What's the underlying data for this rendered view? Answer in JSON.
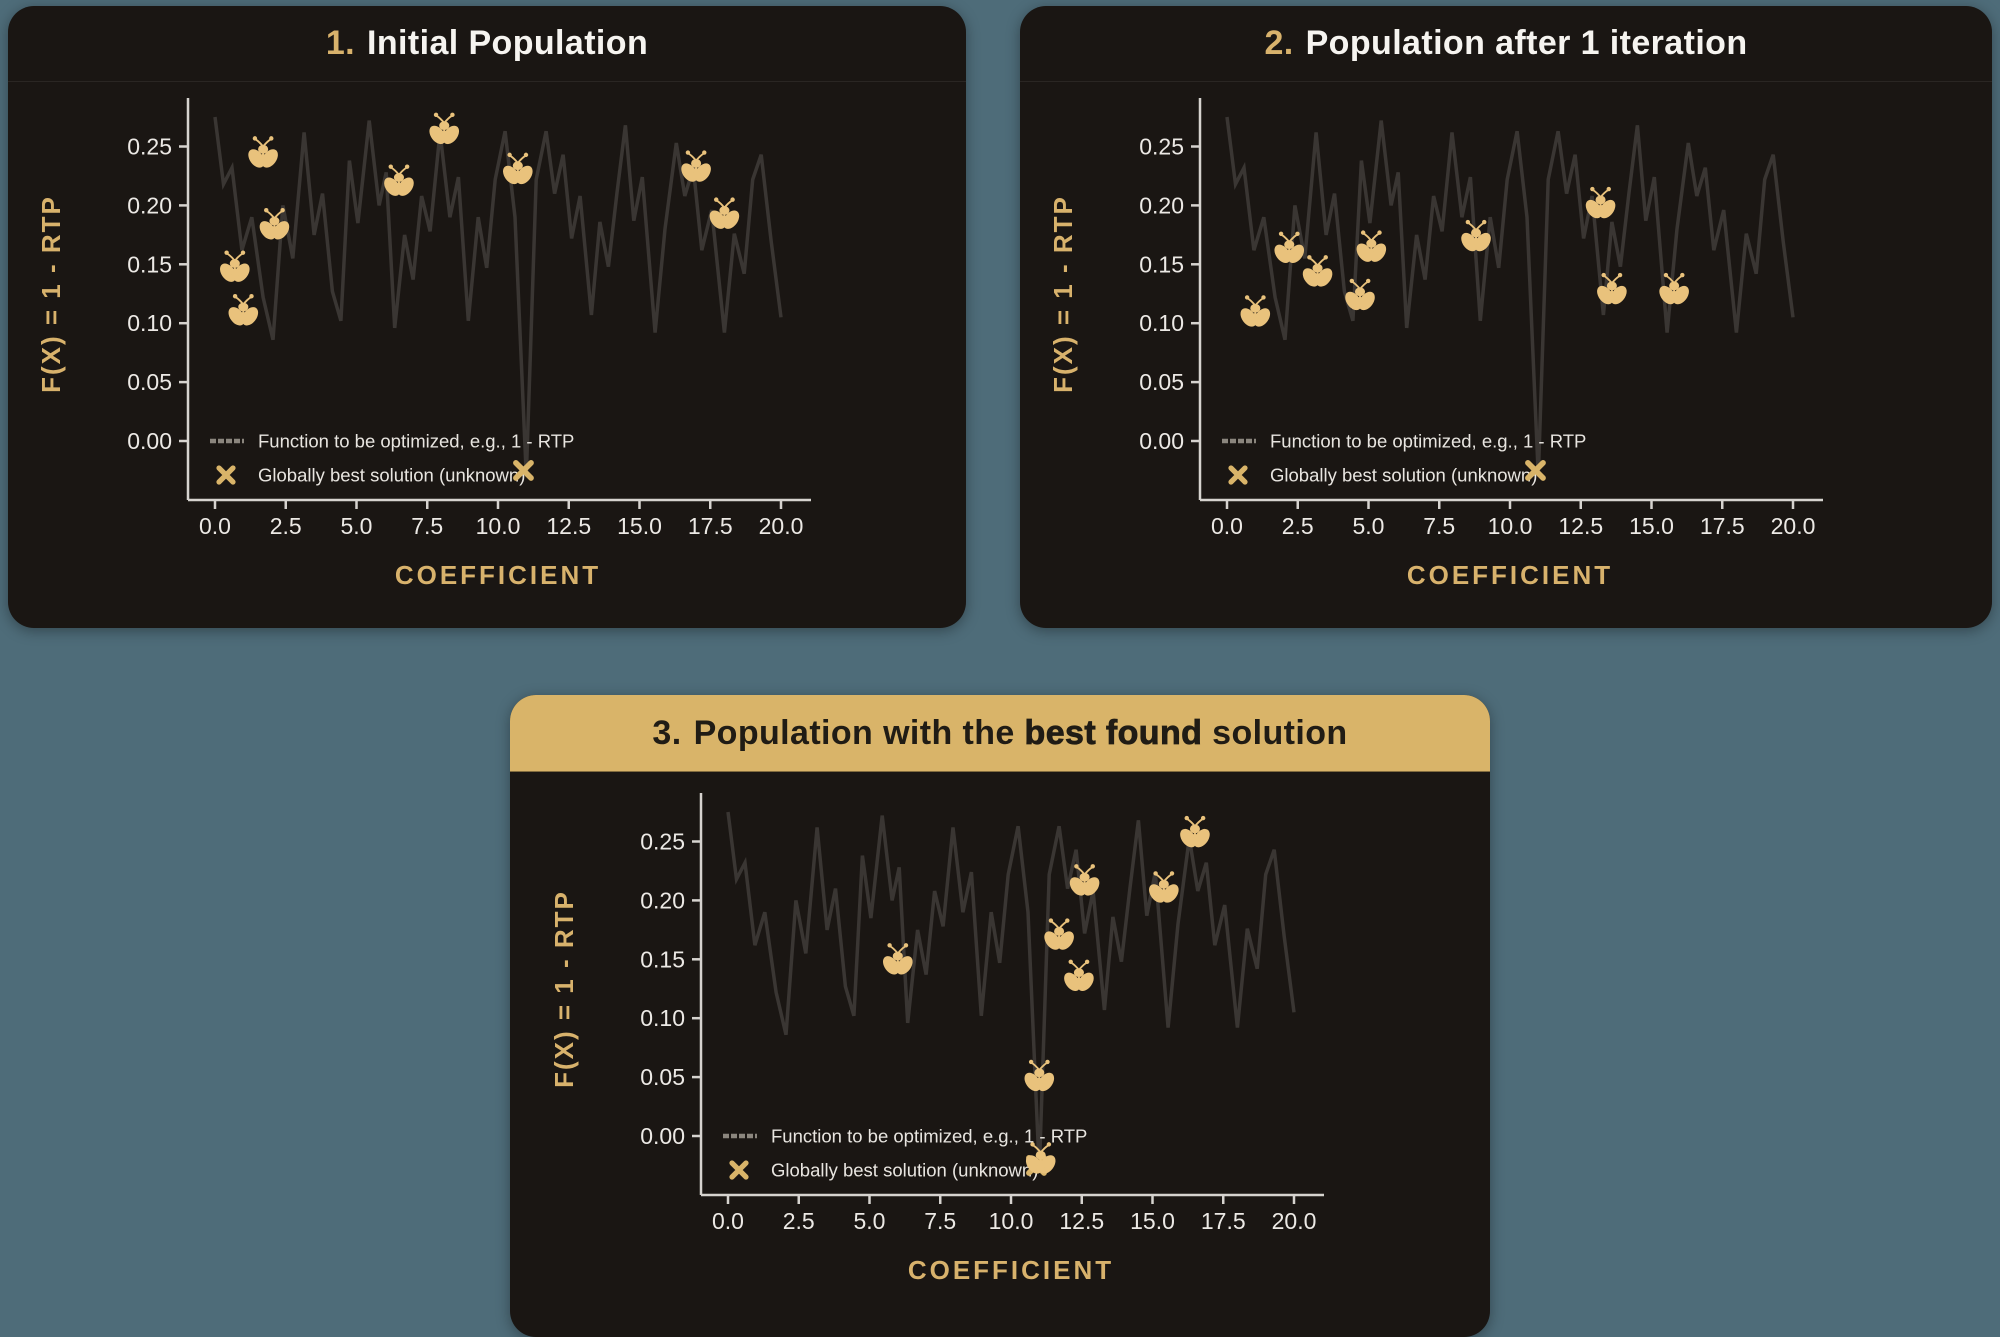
{
  "colors": {
    "background": "#4e6c79",
    "card": "#1a1613",
    "gold_accent": "#d8b26c",
    "firefly_gold": "#e9c27c",
    "header_gold": "#d9b469",
    "header_text": "#201c15",
    "title_text": "#f6f4f0",
    "tick_text": "#ece9e5",
    "legend_text": "#e8e5e0",
    "function_line": "#3a3633",
    "axis_spine": "#d6d3cf",
    "x_marker": "#d9b469"
  },
  "panels": [
    {
      "number": "1.",
      "title_pre": "Initial Population",
      "title_bold": "",
      "title_post": ""
    },
    {
      "number": "2.",
      "title_pre": "Population after 1 iteration",
      "title_bold": "",
      "title_post": ""
    },
    {
      "number": "3.",
      "title_pre": "Population with the ",
      "title_bold": "best found",
      "title_post": " solution"
    }
  ],
  "chart_data": {
    "type": "line",
    "xlabel": "COEFFICIENT",
    "ylabel": "F(X) = 1 - RTP",
    "xlim": [
      -1,
      21.2
    ],
    "ylim": [
      -0.055,
      0.292
    ],
    "grid": false,
    "legend_position": "lower-left-inside",
    "xticks": [
      {
        "value": 0,
        "label": "0.0"
      },
      {
        "value": 2.5,
        "label": "2.5"
      },
      {
        "value": 5,
        "label": "5.0"
      },
      {
        "value": 7.5,
        "label": "7.5"
      },
      {
        "value": 10,
        "label": "10.0"
      },
      {
        "value": 12.5,
        "label": "12.5"
      },
      {
        "value": 15,
        "label": "15.0"
      },
      {
        "value": 17.5,
        "label": "17.5"
      },
      {
        "value": 20,
        "label": "20.0"
      }
    ],
    "yticks": [
      {
        "value": 0.0,
        "label": "0.00"
      },
      {
        "value": 0.05,
        "label": "0.05"
      },
      {
        "value": 0.1,
        "label": "0.10"
      },
      {
        "value": 0.15,
        "label": "0.15"
      },
      {
        "value": 0.2,
        "label": "0.20"
      },
      {
        "value": 0.25,
        "label": "0.25"
      }
    ],
    "legend": [
      {
        "marker": "line",
        "label": "Function to be optimized, e.g., 1 - RTP"
      },
      {
        "marker": "x",
        "label": "Globally best solution (unknown)"
      }
    ],
    "global_best_marker": {
      "x": 10.9,
      "y": -0.025
    },
    "function_curve": [
      [
        0.0,
        0.275
      ],
      [
        0.3,
        0.218
      ],
      [
        0.6,
        0.232
      ],
      [
        0.95,
        0.162
      ],
      [
        1.3,
        0.19
      ],
      [
        1.7,
        0.122
      ],
      [
        2.05,
        0.086
      ],
      [
        2.4,
        0.2
      ],
      [
        2.75,
        0.155
      ],
      [
        3.15,
        0.262
      ],
      [
        3.5,
        0.175
      ],
      [
        3.8,
        0.21
      ],
      [
        4.15,
        0.127
      ],
      [
        4.45,
        0.102
      ],
      [
        4.75,
        0.238
      ],
      [
        5.05,
        0.185
      ],
      [
        5.45,
        0.272
      ],
      [
        5.8,
        0.2
      ],
      [
        6.05,
        0.228
      ],
      [
        6.35,
        0.096
      ],
      [
        6.7,
        0.175
      ],
      [
        7.0,
        0.137
      ],
      [
        7.3,
        0.208
      ],
      [
        7.6,
        0.178
      ],
      [
        7.95,
        0.262
      ],
      [
        8.3,
        0.19
      ],
      [
        8.6,
        0.224
      ],
      [
        8.95,
        0.102
      ],
      [
        9.3,
        0.19
      ],
      [
        9.6,
        0.147
      ],
      [
        9.9,
        0.222
      ],
      [
        10.25,
        0.263
      ],
      [
        10.6,
        0.19
      ],
      [
        11.0,
        -0.03
      ],
      [
        11.35,
        0.222
      ],
      [
        11.7,
        0.263
      ],
      [
        12.0,
        0.21
      ],
      [
        12.3,
        0.243
      ],
      [
        12.6,
        0.172
      ],
      [
        12.9,
        0.208
      ],
      [
        13.3,
        0.107
      ],
      [
        13.6,
        0.186
      ],
      [
        13.9,
        0.148
      ],
      [
        14.2,
        0.21
      ],
      [
        14.5,
        0.268
      ],
      [
        14.8,
        0.187
      ],
      [
        15.1,
        0.224
      ],
      [
        15.55,
        0.092
      ],
      [
        15.9,
        0.18
      ],
      [
        16.3,
        0.253
      ],
      [
        16.6,
        0.208
      ],
      [
        16.9,
        0.232
      ],
      [
        17.2,
        0.162
      ],
      [
        17.55,
        0.196
      ],
      [
        18.0,
        0.092
      ],
      [
        18.35,
        0.176
      ],
      [
        18.7,
        0.142
      ],
      [
        19.0,
        0.222
      ],
      [
        19.3,
        0.243
      ],
      [
        19.65,
        0.17
      ],
      [
        20.0,
        0.105
      ]
    ],
    "panels": [
      {
        "name": "Initial Population",
        "fireflies": [
          [
            0.7,
            0.145
          ],
          [
            1.0,
            0.108
          ],
          [
            1.7,
            0.242
          ],
          [
            2.1,
            0.181
          ],
          [
            6.5,
            0.218
          ],
          [
            8.1,
            0.262
          ],
          [
            10.7,
            0.228
          ],
          [
            17.0,
            0.23
          ],
          [
            18.0,
            0.19
          ]
        ]
      },
      {
        "name": "Population after 1 iteration",
        "fireflies": [
          [
            1.0,
            0.107
          ],
          [
            2.2,
            0.161
          ],
          [
            3.2,
            0.141
          ],
          [
            4.7,
            0.121
          ],
          [
            5.1,
            0.162
          ],
          [
            8.8,
            0.171
          ],
          [
            13.2,
            0.199
          ],
          [
            13.6,
            0.126
          ],
          [
            15.8,
            0.126
          ]
        ]
      },
      {
        "name": "Population with the best found solution",
        "fireflies": [
          [
            6.0,
            0.147
          ],
          [
            11.0,
            0.048
          ],
          [
            11.05,
            -0.022
          ],
          [
            11.7,
            0.168
          ],
          [
            12.4,
            0.133
          ],
          [
            12.6,
            0.214
          ],
          [
            15.4,
            0.208
          ],
          [
            16.5,
            0.255
          ]
        ]
      }
    ]
  }
}
